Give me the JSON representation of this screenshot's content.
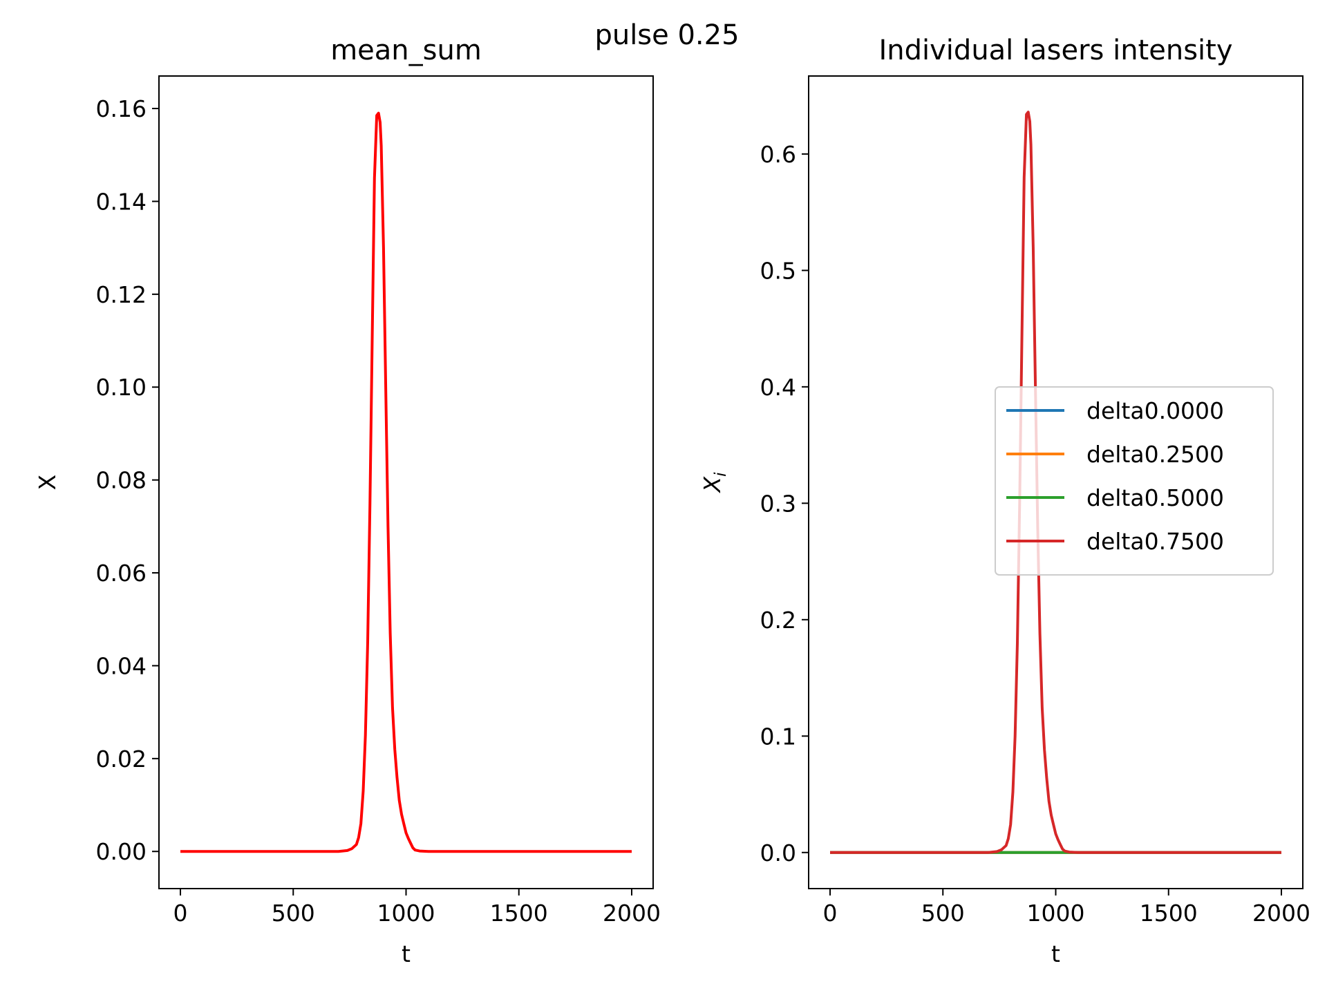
{
  "figure": {
    "suptitle": "pulse 0.25"
  },
  "chart_data": [
    {
      "type": "line",
      "title": "mean_sum",
      "xlabel": "t",
      "ylabel": "X",
      "xlim": [
        -95,
        2095
      ],
      "ylim": [
        -0.008,
        0.167
      ],
      "xticks": [
        0,
        500,
        1000,
        1500,
        2000
      ],
      "xtick_labels": [
        "0",
        "500",
        "1000",
        "1500",
        "2000"
      ],
      "yticks": [
        0.0,
        0.02,
        0.04,
        0.06,
        0.08,
        0.1,
        0.12,
        0.14,
        0.16
      ],
      "ytick_labels": [
        "0.00",
        "0.02",
        "0.04",
        "0.06",
        "0.08",
        "0.10",
        "0.12",
        "0.14",
        "0.16"
      ],
      "grid": false,
      "legend": null,
      "series": [
        {
          "color": "#ff0000",
          "x": [
            0,
            100,
            200,
            300,
            400,
            500,
            600,
            700,
            740,
            760,
            780,
            790,
            800,
            810,
            820,
            830,
            840,
            850,
            860,
            870,
            878,
            885,
            890,
            900,
            910,
            920,
            930,
            940,
            950,
            960,
            970,
            980,
            990,
            1000,
            1010,
            1020,
            1030,
            1040,
            1060,
            1100,
            1200,
            1400,
            1600,
            1800,
            2000
          ],
          "y": [
            0,
            0,
            0,
            0,
            0,
            0,
            0,
            0,
            0.0002,
            0.0006,
            0.0015,
            0.003,
            0.006,
            0.013,
            0.025,
            0.045,
            0.075,
            0.11,
            0.145,
            0.1585,
            0.159,
            0.157,
            0.152,
            0.13,
            0.1,
            0.07,
            0.047,
            0.031,
            0.022,
            0.016,
            0.011,
            0.008,
            0.006,
            0.004,
            0.0028,
            0.0018,
            0.0008,
            0.0003,
            0.0001,
            0,
            0,
            0,
            0,
            0,
            0
          ]
        }
      ]
    },
    {
      "type": "line",
      "title": "Individual lasers intensity",
      "xlabel": "t",
      "ylabel": "X_i",
      "xlim": [
        -95,
        2095
      ],
      "ylim": [
        -0.031,
        0.667
      ],
      "xticks": [
        0,
        500,
        1000,
        1500,
        2000
      ],
      "xtick_labels": [
        "0",
        "500",
        "1000",
        "1500",
        "2000"
      ],
      "yticks": [
        0.0,
        0.1,
        0.2,
        0.3,
        0.4,
        0.5,
        0.6
      ],
      "ytick_labels": [
        "0.0",
        "0.1",
        "0.2",
        "0.3",
        "0.4",
        "0.5",
        "0.6"
      ],
      "grid": false,
      "legend": "center-right",
      "series": [
        {
          "name": "delta0.0000",
          "color": "#1f77b4",
          "x": [
            0,
            2000
          ],
          "y": [
            0,
            0
          ]
        },
        {
          "name": "delta0.2500",
          "color": "#ff7f0e",
          "x": [
            0,
            2000
          ],
          "y": [
            0,
            0
          ]
        },
        {
          "name": "delta0.5000",
          "color": "#2ca02c",
          "x": [
            0,
            2000
          ],
          "y": [
            0,
            0
          ]
        },
        {
          "name": "delta0.7500",
          "color": "#d62728",
          "x": [
            0,
            100,
            200,
            300,
            400,
            500,
            600,
            700,
            740,
            760,
            780,
            790,
            800,
            810,
            820,
            830,
            840,
            850,
            860,
            870,
            878,
            885,
            890,
            900,
            910,
            920,
            930,
            940,
            950,
            960,
            970,
            980,
            990,
            1000,
            1010,
            1020,
            1030,
            1040,
            1060,
            1100,
            1200,
            1400,
            1600,
            1800,
            2000
          ],
          "y": [
            0,
            0,
            0,
            0,
            0,
            0,
            0,
            0,
            0.0008,
            0.0024,
            0.006,
            0.012,
            0.024,
            0.052,
            0.1,
            0.18,
            0.3,
            0.44,
            0.58,
            0.634,
            0.636,
            0.628,
            0.608,
            0.52,
            0.4,
            0.28,
            0.188,
            0.124,
            0.088,
            0.064,
            0.044,
            0.032,
            0.024,
            0.016,
            0.011,
            0.007,
            0.003,
            0.0012,
            0.0004,
            0,
            0,
            0,
            0,
            0,
            0
          ]
        }
      ]
    }
  ]
}
